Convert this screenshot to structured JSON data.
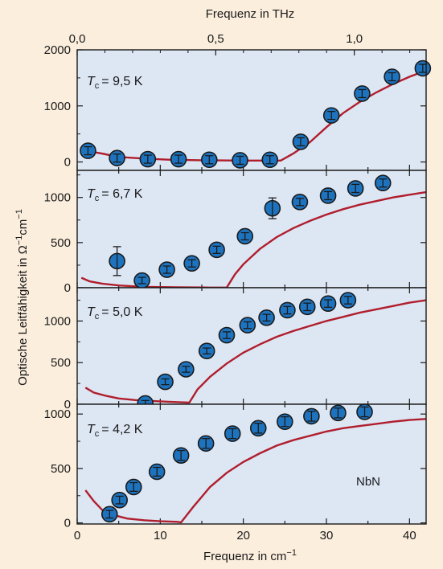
{
  "chart_data": {
    "type": "scatter",
    "top_axis": {
      "label": "Frequenz in THz",
      "ticks": [
        0.0,
        0.5,
        1.0
      ],
      "tick_labels": [
        "0,0",
        "0,5",
        "1,0"
      ]
    },
    "x_axis": {
      "label": "Frequenz in cm",
      "label_sup": "−1",
      "range": [
        0,
        42
      ],
      "ticks": [
        0,
        10,
        20,
        30,
        40
      ],
      "tick_labels": [
        "0",
        "10",
        "20",
        "30",
        "40"
      ]
    },
    "y_axis": {
      "label": "Optische Leitfähigkeit in Ω",
      "label_sup1": "−1",
      "label_mid": "cm",
      "label_sup2": "−1"
    },
    "material_label": "NbN",
    "panels": [
      {
        "tc_label": "= 9,5 K",
        "ylim": [
          -150,
          2000
        ],
        "yticks": [
          0,
          1000,
          2000
        ],
        "ytick_labels": [
          "0",
          "1000",
          "2000"
        ],
        "points": {
          "x": [
            1.3,
            4.8,
            8.5,
            12.2,
            15.9,
            19.6,
            23.2,
            26.9,
            30.6,
            34.3,
            37.9,
            41.6
          ],
          "y": [
            200,
            70,
            50,
            50,
            40,
            30,
            40,
            360,
            830,
            1220,
            1520,
            1670
          ],
          "err": [
            0,
            0,
            0,
            0,
            0,
            0,
            0,
            0,
            0,
            0,
            0,
            0
          ]
        },
        "curve": {
          "x": [
            1,
            3,
            5,
            8,
            11,
            15,
            20,
            24,
            24.5,
            26,
            28,
            30,
            32,
            34,
            36,
            38,
            40,
            42
          ],
          "y": [
            200,
            150,
            90,
            60,
            40,
            30,
            25,
            25,
            25,
            150,
            350,
            620,
            870,
            1070,
            1240,
            1390,
            1520,
            1630
          ]
        }
      },
      {
        "tc_label": "= 6,7 K",
        "ylim": [
          0,
          1300
        ],
        "yticks": [
          0,
          500,
          1000
        ],
        "ytick_labels": [
          "0",
          "500",
          "1000"
        ],
        "points": {
          "x": [
            4.8,
            7.8,
            10.8,
            13.8,
            16.8,
            20.2,
            23.5,
            26.8,
            30.2,
            33.5,
            36.8
          ],
          "y": [
            295,
            80,
            200,
            270,
            420,
            570,
            880,
            950,
            1020,
            1100,
            1160
          ],
          "err": [
            160,
            35,
            40,
            40,
            40,
            40,
            115,
            40,
            45,
            45,
            45
          ]
        },
        "curve": {
          "x": [
            0.5,
            1.5,
            3,
            5,
            8,
            12,
            16,
            18,
            19,
            20,
            22,
            24,
            26,
            28,
            30,
            32,
            34,
            36,
            38,
            40,
            42
          ],
          "y": [
            110,
            70,
            45,
            25,
            10,
            5,
            2,
            2,
            150,
            260,
            430,
            560,
            660,
            740,
            810,
            870,
            920,
            960,
            1000,
            1030,
            1060
          ]
        }
      },
      {
        "tc_label": "= 5,0 K",
        "ylim": [
          0,
          1400
        ],
        "yticks": [
          0,
          500,
          1000
        ],
        "ytick_labels": [
          "0",
          "500",
          "1000"
        ],
        "points": {
          "x": [
            8.2,
            10.6,
            13.1,
            15.6,
            18.0,
            20.5,
            22.8,
            25.3,
            27.7,
            30.2,
            32.6
          ],
          "y": [
            10,
            270,
            420,
            640,
            830,
            950,
            1040,
            1130,
            1170,
            1210,
            1250
          ],
          "err": [
            35,
            35,
            35,
            35,
            40,
            40,
            40,
            45,
            45,
            45,
            45
          ]
        },
        "curve": {
          "x": [
            1,
            2,
            3.5,
            5,
            7,
            9,
            11,
            13.5,
            14.5,
            16,
            18,
            20,
            22,
            24,
            26,
            28,
            30,
            32,
            34,
            36,
            38,
            40,
            42
          ],
          "y": [
            200,
            140,
            100,
            70,
            50,
            40,
            30,
            20,
            180,
            330,
            490,
            620,
            720,
            810,
            880,
            940,
            1000,
            1050,
            1100,
            1140,
            1180,
            1220,
            1250
          ]
        }
      },
      {
        "tc_label": "= 4,2 K",
        "ylim": [
          -10,
          1090
        ],
        "yticks": [
          0,
          500,
          1000
        ],
        "ytick_labels": [
          "0",
          "500",
          "1000"
        ],
        "points": {
          "x": [
            3.9,
            5.1,
            6.8,
            9.6,
            12.5,
            15.5,
            18.7,
            21.8,
            25.0,
            28.2,
            31.4,
            34.6
          ],
          "y": [
            80,
            210,
            330,
            470,
            620,
            730,
            820,
            870,
            930,
            980,
            1010,
            1020
          ],
          "err": [
            35,
            35,
            40,
            40,
            45,
            45,
            45,
            45,
            45,
            45,
            45,
            45
          ]
        },
        "curve": {
          "x": [
            1,
            2,
            3,
            4.5,
            6,
            8,
            10,
            12,
            12.5,
            14,
            16,
            18,
            20,
            22,
            24,
            26,
            28,
            30,
            32,
            34,
            36,
            38,
            40,
            42
          ],
          "y": [
            300,
            200,
            120,
            70,
            40,
            25,
            15,
            10,
            5,
            150,
            330,
            460,
            560,
            640,
            710,
            760,
            800,
            840,
            870,
            890,
            910,
            930,
            945,
            955
          ]
        }
      }
    ],
    "colors": {
      "background": "#fbeedd",
      "plot_area": "#dde6f3",
      "marker_fill": "#1e73be",
      "marker_edge": "#1a1a1a",
      "curve": "#b01e2d"
    }
  }
}
